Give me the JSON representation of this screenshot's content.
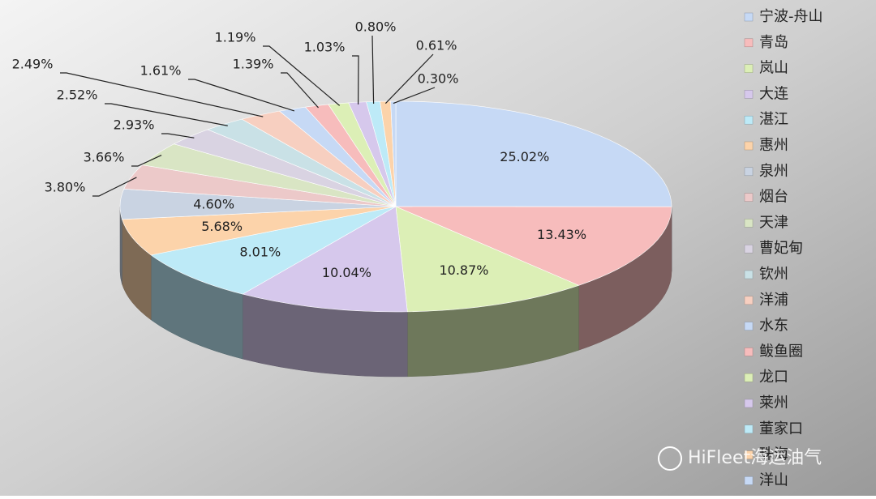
{
  "chart_data": {
    "type": "pie3d",
    "categories": [
      "宁波-舟山",
      "青岛",
      "岚山",
      "大连",
      "湛江",
      "惠州",
      "泉州",
      "烟台",
      "天津",
      "曹妃甸",
      "钦州",
      "洋浦",
      "水东",
      "鲅鱼圈",
      "龙口",
      "莱州",
      "董家口",
      "珠海",
      "洋山"
    ],
    "values": [
      25.02,
      13.43,
      10.87,
      10.04,
      8.01,
      5.68,
      4.6,
      3.8,
      3.66,
      2.93,
      2.52,
      2.49,
      1.61,
      1.39,
      1.19,
      1.03,
      0.8,
      0.61,
      0.3
    ],
    "value_labels": [
      "25.02%",
      "13.43%",
      "10.87%",
      "10.04%",
      "8.01%",
      "5.68%",
      "4.60%",
      "3.80%",
      "3.66%",
      "2.93%",
      "2.52%",
      "2.49%",
      "1.61%",
      "1.39%",
      "1.19%",
      "1.03%",
      "0.80%",
      "0.61%",
      "0.30%"
    ],
    "colors": [
      "#c6d9f5",
      "#f7bcbc",
      "#dcefb6",
      "#d6c8ec",
      "#bdeaf7",
      "#fcd3aa",
      "#c9d3e2",
      "#ecc9c9",
      "#d9e5c4",
      "#d9d3e2",
      "#c9e1e6",
      "#f7cfc0",
      "#c6d9f5",
      "#f7bcbc",
      "#dcefb6",
      "#d6c8ec",
      "#bdeaf7",
      "#fcd3aa",
      "#c6d9f5"
    ],
    "legend": "right",
    "watermark": "HiFleet海运油气"
  }
}
